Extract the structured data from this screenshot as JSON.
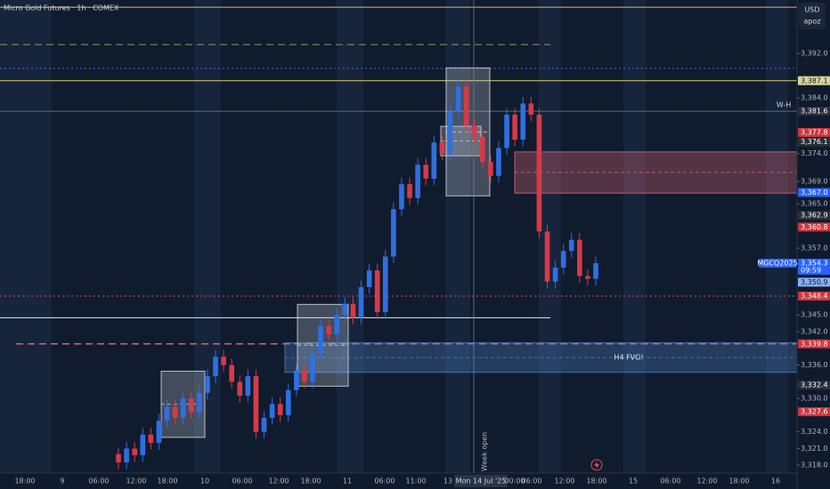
{
  "chart_data": {
    "type": "candlestick",
    "title": "Micro Gold Futures · 1h · COMEX",
    "currency": "USD",
    "account": "apoz",
    "up_color": "#2f6fe0",
    "down_color": "#d63a48",
    "ylim": [
      3316.6,
      3401.6
    ],
    "yticks": [
      {
        "value": 3392,
        "label": "3,392.0"
      },
      {
        "value": 3384,
        "label": "3,384.0"
      },
      {
        "value": 3374,
        "label": "3,374.0"
      },
      {
        "value": 3369,
        "label": "3,369.0"
      },
      {
        "value": 3365,
        "label": "3,365.0"
      },
      {
        "value": 3357,
        "label": "3,357.0"
      },
      {
        "value": 3345,
        "label": "3,345.0"
      },
      {
        "value": 3342,
        "label": "3,342.0"
      },
      {
        "value": 3336,
        "label": "3,336.0"
      },
      {
        "value": 3330,
        "label": "3,330.0"
      },
      {
        "value": 3324,
        "label": "3,324.0"
      },
      {
        "value": 3321,
        "label": "3,321.0"
      },
      {
        "value": 3318,
        "label": "3,318.0"
      }
    ],
    "xlabels": [
      "18:00",
      "9",
      "06:00",
      "12:00",
      "18:00",
      "10",
      "06:00",
      "12:00",
      "18:00",
      "11",
      "06:00",
      "11:00",
      "13",
      "Mon 14 Jul '25",
      "00:00",
      "06:00",
      "12:00",
      "18:00",
      "15",
      "06:00",
      "12:00",
      "18:00",
      "16"
    ],
    "week_open": "Week open",
    "level_label": "W-H",
    "fvg_label": "H4 FVG!",
    "hlines": [
      {
        "value": 3400.3,
        "color": "#c8c46e",
        "style": "solid"
      },
      {
        "value": 3393.6,
        "color": "#9c9458",
        "style": "dashed"
      },
      {
        "value": 3389.3,
        "color": "#3d6be0",
        "style": "dotted"
      },
      {
        "value": 3387.1,
        "color": "#d8d27a",
        "style": "solid"
      },
      {
        "value": 3381.6,
        "color": "#5d6b7a",
        "style": "solid"
      },
      {
        "value": 3348.4,
        "color": "#e0505a",
        "style": "dotted"
      },
      {
        "value": 3344.5,
        "color": "#e8e8e8",
        "style": "solid"
      },
      {
        "value": 3339.8,
        "color": "#e06070",
        "style": "dashed"
      }
    ],
    "boxes": [
      {
        "top": 3340.0,
        "bottom": 3334.7,
        "color": "#4a7ab8"
      },
      {
        "top": 3374.3,
        "bottom": 3366.9,
        "color": "#d06470"
      },
      {
        "top": 3334.9,
        "bottom": 3323.0,
        "color": "#c8ccd4"
      },
      {
        "top": 3346.9,
        "bottom": 3332.2,
        "color": "#c8ccd4"
      },
      {
        "top": 3389.4,
        "bottom": 3366.4,
        "color": "#c8ccd4"
      },
      {
        "top": 3378.9,
        "bottom": 3373.6,
        "color": "#c8ccd4"
      }
    ],
    "badges": [
      {
        "value": 3387.1,
        "label": "3,387.1",
        "color": "#d8d49a"
      },
      {
        "value": 3381.6,
        "label": "3,381.6",
        "color": "#2a2e39"
      },
      {
        "value": 3377.8,
        "label": "3,377.8",
        "color": "#c9373f"
      },
      {
        "value": 3376.1,
        "label": "3,376.1",
        "color": "#2a2e39"
      },
      {
        "value": 3367.0,
        "label": "3,367.0",
        "color": "#2962ff"
      },
      {
        "value": 3362.9,
        "label": "3,362.9",
        "color": "#2a2e39"
      },
      {
        "value": 3360.8,
        "label": "3,360.8",
        "color": "#c9373f"
      },
      {
        "value": 3354.3,
        "label": "3,354.3",
        "color": "#2962ff",
        "symbol": "MGCQ2025",
        "countdown": "09:59"
      },
      {
        "value": 3350.9,
        "label": "3,350.9",
        "color": "#86aef0"
      },
      {
        "value": 3348.4,
        "label": "3,348.4",
        "color": "#c9373f"
      },
      {
        "value": 3339.8,
        "label": "3,339.8",
        "color": "#c9373f"
      },
      {
        "value": 3332.4,
        "label": "3,332.4",
        "color": "#2a2e39"
      },
      {
        "value": 3327.6,
        "label": "3,327.6",
        "color": "#c9373f"
      }
    ],
    "candles": [
      [
        3320,
        3321.2,
        3317.3,
        3318.5
      ],
      [
        3318.5,
        3322.2,
        3317.3,
        3321
      ],
      [
        3321,
        3322.2,
        3318.6,
        3319.8
      ],
      [
        3319.8,
        3324.7,
        3318.6,
        3323.5
      ],
      [
        3323.5,
        3324.7,
        3320.8,
        3322
      ],
      [
        3322,
        3327.2,
        3320.8,
        3326
      ],
      [
        3326,
        3329.7,
        3324.8,
        3328.5
      ],
      [
        3328.5,
        3329.7,
        3325.3,
        3326.5
      ],
      [
        3326.5,
        3331.2,
        3325.3,
        3330
      ],
      [
        3330,
        3331.2,
        3326.3,
        3327.5
      ],
      [
        3327.5,
        3332.2,
        3326.3,
        3331
      ],
      [
        3331,
        3335.2,
        3329.8,
        3334
      ],
      [
        3334,
        3338.7,
        3332.8,
        3337.5
      ],
      [
        3337.5,
        3338.7,
        3334.8,
        3336
      ],
      [
        3336,
        3337.2,
        3331.8,
        3333
      ],
      [
        3333,
        3334.2,
        3329.3,
        3330.5
      ],
      [
        3330.5,
        3335.2,
        3329.3,
        3334
      ],
      [
        3334,
        3335.2,
        3322.8,
        3324
      ],
      [
        3324,
        3327.7,
        3322.8,
        3326.5
      ],
      [
        3326.5,
        3330.2,
        3325.3,
        3329
      ],
      [
        3329,
        3330.2,
        3325.8,
        3327
      ],
      [
        3327,
        3332.7,
        3325.8,
        3331.5
      ],
      [
        3331.5,
        3336.2,
        3330.3,
        3335
      ],
      [
        3335,
        3336.2,
        3331.8,
        3333
      ],
      [
        3333,
        3339.2,
        3331.8,
        3338
      ],
      [
        3338,
        3344.2,
        3336.8,
        3343
      ],
      [
        3343,
        3344.2,
        3340.3,
        3341.5
      ],
      [
        3341.5,
        3346.2,
        3340.3,
        3345
      ],
      [
        3345,
        3348.2,
        3343.8,
        3347
      ],
      [
        3347,
        3348.2,
        3343.3,
        3344.5
      ],
      [
        3344.5,
        3351.2,
        3343.3,
        3350
      ],
      [
        3350,
        3354.2,
        3348.8,
        3353
      ],
      [
        3353,
        3354.2,
        3344.3,
        3345.5
      ],
      [
        3345.5,
        3356.7,
        3344.3,
        3355.5
      ],
      [
        3355.5,
        3365.2,
        3354.3,
        3364
      ],
      [
        3364,
        3369.7,
        3362.8,
        3368.5
      ],
      [
        3368.5,
        3369.7,
        3364.8,
        3366
      ],
      [
        3366,
        3373.2,
        3364.8,
        3372
      ],
      [
        3372,
        3373.2,
        3368.3,
        3369.5
      ],
      [
        3369.5,
        3377.2,
        3368.3,
        3376
      ],
      [
        3376,
        3377.2,
        3372.8,
        3374
      ],
      [
        3374,
        3382.7,
        3372.8,
        3381.5
      ],
      [
        3381.5,
        3387.2,
        3380.3,
        3386
      ],
      [
        3386,
        3387.2,
        3377.8,
        3379
      ],
      [
        3379,
        3380.2,
        3375.8,
        3377
      ],
      [
        3377,
        3378.2,
        3371.3,
        3372.5
      ],
      [
        3372.5,
        3373.7,
        3368.8,
        3370
      ],
      [
        3370,
        3376.2,
        3368.8,
        3375
      ],
      [
        3375,
        3382.2,
        3373.8,
        3381
      ],
      [
        3381,
        3382.2,
        3375.3,
        3376.5
      ],
      [
        3376.5,
        3384.2,
        3375.3,
        3383
      ],
      [
        3383,
        3384.2,
        3379.8,
        3381
      ],
      [
        3381,
        3382.2,
        3358.8,
        3360
      ],
      [
        3360,
        3361.2,
        3349.8,
        3351
      ],
      [
        3351,
        3354.7,
        3349.8,
        3353.5
      ],
      [
        3353.5,
        3357.7,
        3352.3,
        3356.5
      ],
      [
        3356.5,
        3359.7,
        3355.3,
        3358.5
      ],
      [
        3358.5,
        3359.7,
        3350.8,
        3352
      ],
      [
        3352,
        3353.2,
        3350.3,
        3351.5
      ],
      [
        3351.5,
        3355.5,
        3350.3,
        3354.3
      ]
    ]
  }
}
